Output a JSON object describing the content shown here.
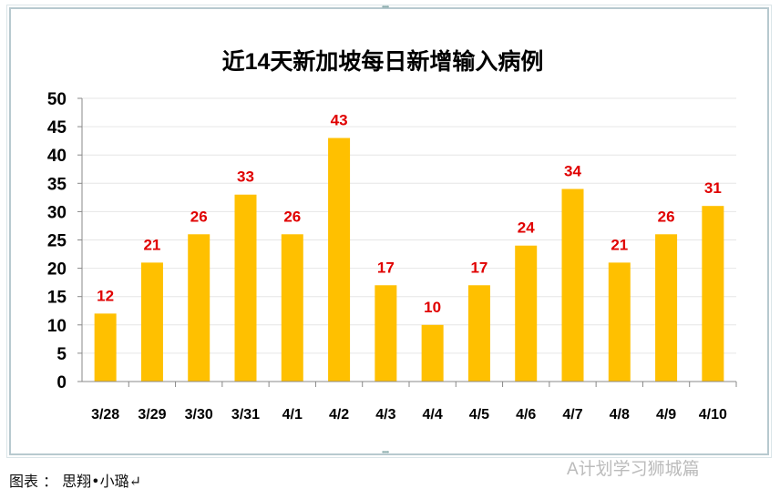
{
  "chart_data": {
    "type": "bar",
    "title": "近14天新加坡每日新增输入病例",
    "categories": [
      "3/28",
      "3/29",
      "3/30",
      "3/31",
      "4/1",
      "4/2",
      "4/3",
      "4/4",
      "4/5",
      "4/6",
      "4/7",
      "4/8",
      "4/9",
      "4/10"
    ],
    "values": [
      12,
      21,
      26,
      33,
      26,
      43,
      17,
      10,
      17,
      24,
      34,
      21,
      26,
      31
    ],
    "ylim": [
      0,
      50
    ],
    "yticks": [
      0,
      5,
      10,
      15,
      20,
      25,
      30,
      35,
      40,
      45,
      50
    ],
    "grid": true,
    "bar_color": "#FFC000",
    "label_color": "#E00000",
    "xlabel": "",
    "ylabel": ""
  },
  "caption": "图表 ： 思翔•小璐↵",
  "watermark": "A计划学习狮城篇"
}
